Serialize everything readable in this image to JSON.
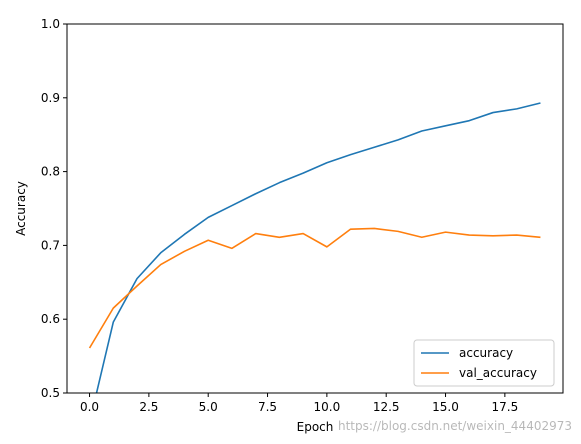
{
  "chart_data": {
    "type": "line",
    "title": "",
    "xlabel": "Epoch",
    "ylabel": "Accuracy",
    "xlim": [
      -0.95,
      19.95
    ],
    "ylim": [
      0.5,
      1.0
    ],
    "xticks": [
      0,
      2.5,
      5,
      7.5,
      10,
      12.5,
      15,
      17.5
    ],
    "xtick_labels": [
      "0.0",
      "2.5",
      "5.0",
      "7.5",
      "10.0",
      "12.5",
      "15.0",
      "17.5"
    ],
    "yticks": [
      0.5,
      0.6,
      0.7,
      0.8,
      0.9,
      1.0
    ],
    "ytick_labels": [
      "0.5",
      "0.6",
      "0.7",
      "0.8",
      "0.9",
      "1.0"
    ],
    "grid": false,
    "legend": "lower-right",
    "x": [
      0,
      1,
      2,
      3,
      4,
      5,
      6,
      7,
      8,
      9,
      10,
      11,
      12,
      13,
      14,
      15,
      16,
      17,
      18,
      19
    ],
    "series": [
      {
        "name": "accuracy",
        "color": "#1f77b4",
        "values": [
          0.46,
          0.596,
          0.655,
          0.69,
          0.715,
          0.738,
          0.754,
          0.77,
          0.785,
          0.798,
          0.812,
          0.823,
          0.833,
          0.843,
          0.855,
          0.862,
          0.869,
          0.88,
          0.885,
          0.893
        ]
      },
      {
        "name": "val_accuracy",
        "color": "#ff7f0e",
        "values": [
          0.561,
          0.615,
          0.645,
          0.674,
          0.692,
          0.707,
          0.696,
          0.716,
          0.711,
          0.716,
          0.698,
          0.722,
          0.723,
          0.719,
          0.711,
          0.718,
          0.714,
          0.713,
          0.714,
          0.711
        ]
      }
    ]
  },
  "watermark": "https://blog.csdn.net/weixin_44402973"
}
